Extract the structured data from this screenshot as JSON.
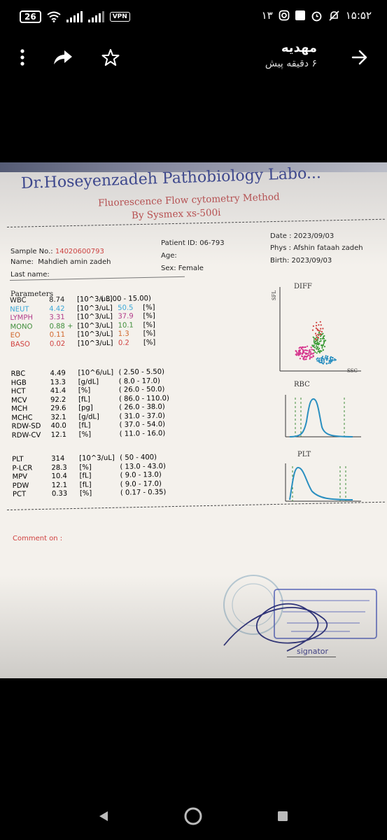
{
  "status_bar": {
    "battery": "26",
    "vpn_label": "VPN",
    "time": "۱۵:۵۲",
    "notification_count": "۱۳"
  },
  "app_bar": {
    "sender_name": "مهدیه",
    "sent_time": "۶ دقیقه پیش"
  },
  "report": {
    "lab_name": "Dr.Hoseyenzadeh Pathobiology Labo...",
    "method": "Fluorescence Flow cytometry Method",
    "device": "By Sysmex xs-500i",
    "sample_label": "Sample No.:",
    "sample_no": "14020600793",
    "name_label": "Name:",
    "name_value": "Mahdieh amin zadeh",
    "last_name_label": "Last name:",
    "patient_id": "Patient ID:  06-793",
    "age": "Age:",
    "sex": "Sex: Female",
    "date": "Date :  2023/09/03",
    "phys": "Phys :  Afshin fataah zadeh",
    "birth": "Birth: 2023/09/03",
    "parameters_heading": "Parameters",
    "comment_label": "Comment on :",
    "signature_label": "signator",
    "plot_labels": {
      "diff": "DIFF",
      "rbc": "RBC",
      "plt": "PLT",
      "sfl": "SFL",
      "ssc": "SSC"
    },
    "group1": [
      {
        "name": "WBC",
        "value": "8.74",
        "unit": "[10^3/uL]",
        "pct": "",
        "pct_unit": "",
        "range": "( 3.00 -  15.00)",
        "color": "#222222"
      },
      {
        "name": "NEUT",
        "value": "4.42",
        "unit": "[10^3/uL]",
        "pct": "50.5",
        "pct_unit": "[%]",
        "range": "",
        "color": "#3aa7d8"
      },
      {
        "name": "LYMPH",
        "value": "3.31",
        "unit": "[10^3/uL]",
        "pct": "37.9",
        "pct_unit": "[%]",
        "range": "",
        "color": "#b23c8a"
      },
      {
        "name": "MONO",
        "value": "0.88 +",
        "unit": "[10^3/uL]",
        "pct": "10.1",
        "pct_unit": "[%]",
        "range": "",
        "color": "#3f8d3a"
      },
      {
        "name": "EO",
        "value": "0.11",
        "unit": "[10^3/uL]",
        "pct": "1.3",
        "pct_unit": "[%]",
        "range": "",
        "color": "#d06428"
      },
      {
        "name": "BASO",
        "value": "0.02",
        "unit": "[10^3/uL]",
        "pct": "0.2",
        "pct_unit": "[%]",
        "range": "",
        "color": "#d0413f"
      }
    ],
    "group2": [
      {
        "name": "RBC",
        "value": "4.49",
        "unit": "[10^6/uL]",
        "range": "(  2.50 -   5.50)"
      },
      {
        "name": "HGB",
        "value": "13.3",
        "unit": "[g/dL]",
        "range": "(   8.0 -  17.0)"
      },
      {
        "name": "HCT",
        "value": "41.4",
        "unit": "[%]",
        "range": "(  26.0 -  50.0)"
      },
      {
        "name": "MCV",
        "value": "92.2",
        "unit": "[fL]",
        "range": "(  86.0 - 110.0)"
      },
      {
        "name": "MCH",
        "value": "29.6",
        "unit": "[pg]",
        "range": "(  26.0 -  38.0)"
      },
      {
        "name": "MCHC",
        "value": "32.1",
        "unit": "[g/dL]",
        "range": "(  31.0 -  37.0)"
      },
      {
        "name": "RDW-SD",
        "value": "40.0",
        "unit": "[fL]",
        "range": "(  37.0 -  54.0)"
      },
      {
        "name": "RDW-CV",
        "value": "12.1",
        "unit": "[%]",
        "range": "(  11.0 -  16.0)"
      }
    ],
    "group3": [
      {
        "name": "PLT",
        "value": "314",
        "unit": "[10^3/uL]",
        "range": "(    50 -   400)"
      },
      {
        "name": "P-LCR",
        "value": "28.3",
        "unit": "[%]",
        "range": "(  13.0 -  43.0)"
      },
      {
        "name": "MPV",
        "value": "10.4",
        "unit": "[fL]",
        "range": "(   9.0 -  13.0)"
      },
      {
        "name": "PDW",
        "value": "12.1",
        "unit": "[fL]",
        "range": "(   9.0 -  17.0)"
      },
      {
        "name": "PCT",
        "value": "0.33",
        "unit": "[%]",
        "range": "(  0.17 -   0.35)"
      }
    ]
  }
}
